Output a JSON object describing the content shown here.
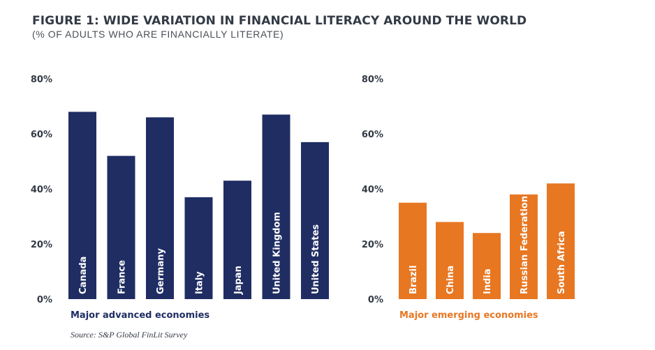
{
  "header": {
    "title": "FIGURE 1: WIDE VARIATION IN FINANCIAL LITERACY AROUND THE WORLD",
    "subtitle": "(% OF ADULTS WHO ARE FINANCIALLY LITERATE)"
  },
  "source": "Source: S&P Global FinLit Survey",
  "chart_data": [
    {
      "type": "bar",
      "title": "Major advanced economies",
      "color": "#1f2d63",
      "label_color": "#ffffff",
      "title_color": "#1f2d63",
      "categories": [
        "Canada",
        "France",
        "Germany",
        "Italy",
        "Japan",
        "United Kingdom",
        "United States"
      ],
      "values": [
        68,
        52,
        66,
        37,
        43,
        67,
        57
      ],
      "ylim": [
        0,
        80
      ],
      "yticks": [
        0,
        20,
        40,
        60,
        80
      ],
      "ytick_labels": [
        "0%",
        "20%",
        "40%",
        "60%",
        "80%"
      ],
      "xlabel": "",
      "ylabel": "",
      "grid": false
    },
    {
      "type": "bar",
      "title": "Major emerging economies",
      "color": "#e87722",
      "label_color": "#ffffff",
      "title_color": "#e87722",
      "categories": [
        "Brazil",
        "China",
        "India",
        "Russian Federation",
        "South Africa"
      ],
      "values": [
        35,
        28,
        24,
        38,
        42
      ],
      "ylim": [
        0,
        80
      ],
      "yticks": [
        0,
        20,
        40,
        60,
        80
      ],
      "ytick_labels": [
        "0%",
        "20%",
        "40%",
        "60%",
        "80%"
      ],
      "xlabel": "",
      "ylabel": "",
      "grid": false
    }
  ]
}
